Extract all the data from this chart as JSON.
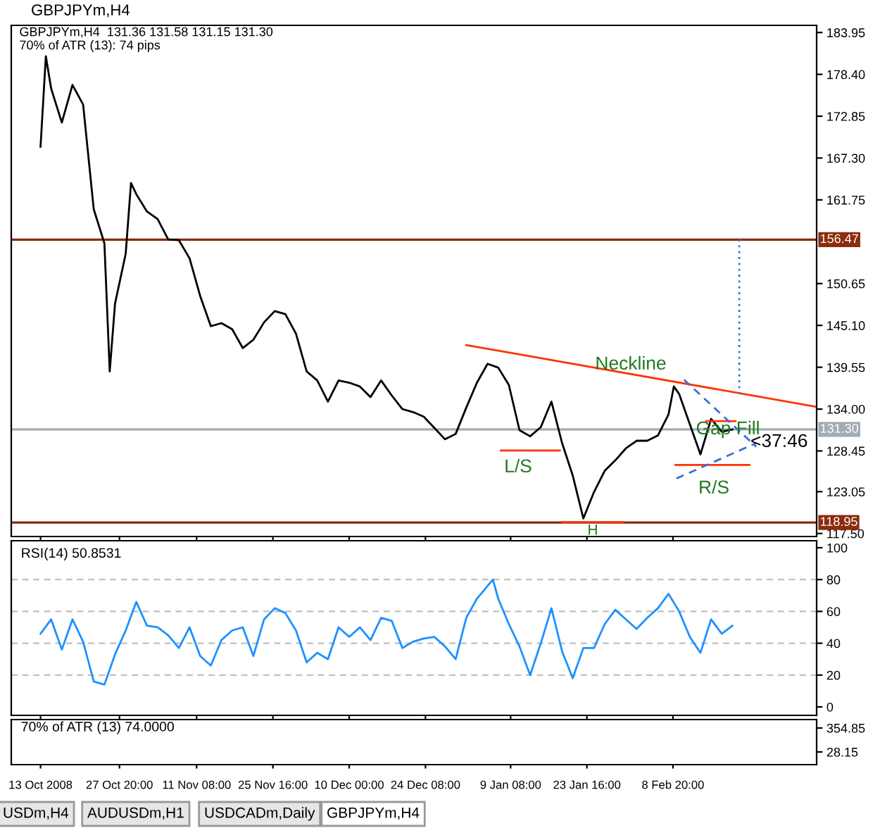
{
  "chart_data": [
    {
      "type": "line",
      "title": "GBPJPYm,H4",
      "annotations": [
        "GBPJPYm,H4  131.36 131.58 131.15 131.30",
        "70% of ATR (13): 74 pips",
        "Neckline",
        "L/S",
        "H",
        "R/S",
        "Gap Fill",
        "<37:46"
      ],
      "xlim": [
        "2008-10-07T12:00",
        "2009-03-07T20:00"
      ],
      "xticks": [
        {
          "value": "2008-10-13T00:00",
          "label": null
        },
        {
          "value": "2008-10-27T20:00",
          "label": null
        },
        {
          "value": "2008-11-11T08:00",
          "label": null
        },
        {
          "value": "2008-11-25T16:00",
          "label": null
        },
        {
          "value": "2008-12-10T00:00",
          "label": null
        },
        {
          "value": "2008-12-24T08:00",
          "label": null
        },
        {
          "value": "2009-01-09T08:00",
          "label": null
        },
        {
          "value": "2009-01-23T16:00",
          "label": null
        },
        {
          "value": "2009-02-08T20:00",
          "label": null
        }
      ],
      "ylim": [
        117.1,
        184.9
      ],
      "yticks": [
        183.95,
        {
          "value": 178.4,
          "label": "178.40"
        },
        172.85,
        {
          "value": 167.3,
          "label": "167.30"
        },
        161.75,
        150.65,
        {
          "value": 145.1,
          "label": "145.10"
        },
        139.55,
        {
          "value": 134.0,
          "label": "134.00"
        },
        128.45,
        123.05,
        {
          "value": 117.5,
          "label": "117.50"
        }
      ],
      "tick_labels": "y",
      "ref_lines": [
        {
          "axis": "y",
          "value": 156.47,
          "label": "156.47",
          "color": "#8b2c0c"
        },
        {
          "axis": "y",
          "value": 131.3,
          "label": "131.30",
          "color": "#a3acb5"
        },
        {
          "axis": "y",
          "value": 118.95,
          "label": "118.95",
          "color": "#8b2c0c"
        }
      ],
      "series": [
        {
          "color": "#000000",
          "x": [
            "2008-10-13",
            "2008-10-14",
            "2008-10-15",
            "2008-10-17",
            "2008-10-19",
            "2008-10-21",
            "2008-10-23",
            "2008-10-25",
            "2008-10-26",
            "2008-10-27",
            "2008-10-29",
            "2008-10-30",
            "2008-10-31",
            "2008-11-02",
            "2008-11-04",
            "2008-11-06",
            "2008-11-08",
            "2008-11-10",
            "2008-11-12",
            "2008-11-14",
            "2008-11-16",
            "2008-11-18",
            "2008-11-20",
            "2008-11-22",
            "2008-11-24",
            "2008-11-26",
            "2008-11-28",
            "2008-11-30",
            "2008-12-02",
            "2008-12-04",
            "2008-12-06",
            "2008-12-08",
            "2008-12-10",
            "2008-12-12",
            "2008-12-14",
            "2008-12-16",
            "2008-12-18",
            "2008-12-20",
            "2008-12-22",
            "2008-12-24",
            "2008-12-26",
            "2008-12-28",
            "2008-12-30",
            "2009-01-01",
            "2009-01-03",
            "2009-01-05",
            "2009-01-07",
            "2009-01-09",
            "2009-01-11",
            "2009-01-13",
            "2009-01-15",
            "2009-01-17",
            "2009-01-19",
            "2009-01-21",
            "2009-01-23",
            "2009-01-25",
            "2009-01-27",
            "2009-01-29",
            "2009-01-31",
            "2009-02-02",
            "2009-02-04",
            "2009-02-06",
            "2009-02-08",
            "2009-02-09",
            "2009-02-10",
            "2009-02-12",
            "2009-02-14",
            "2009-02-16",
            "2009-02-18",
            "2009-02-20"
          ],
          "values": [
            168.8,
            180.8,
            176.5,
            172.0,
            177.0,
            174.4,
            160.5,
            156.0,
            139.0,
            148.0,
            154.6,
            164.0,
            162.5,
            160.2,
            159.2,
            156.5,
            156.4,
            154.0,
            149.0,
            145.0,
            145.4,
            144.6,
            142.1,
            143.2,
            145.5,
            147.0,
            146.6,
            144.0,
            139.0,
            137.8,
            135.0,
            137.8,
            137.5,
            137.0,
            135.6,
            137.8,
            135.8,
            134.0,
            133.6,
            133.0,
            131.5,
            130.0,
            130.7,
            134.2,
            137.5,
            140.0,
            139.5,
            137.2,
            131.2,
            130.4,
            131.6,
            135.0,
            129.5,
            125.2,
            119.5,
            123.0,
            125.8,
            127.2,
            128.8,
            129.8,
            129.8,
            130.5,
            133.3,
            137.0,
            136.0,
            132.0,
            128.0,
            132.7,
            131.0,
            131.3
          ]
        },
        {
          "color": "#ff3300",
          "x": [
            "2009-01-01T00:00",
            "2009-03-07T20:00"
          ],
          "values": [
            142.5,
            134.3
          ]
        },
        {
          "color": "#ff3300",
          "x": [
            "2009-01-07T12:00",
            "2009-01-18T14:00"
          ],
          "values": [
            128.5,
            128.5
          ]
        },
        {
          "color": "#ff3300",
          "x": [
            "2009-01-19T02:00",
            "2009-01-30T12:00"
          ],
          "values": [
            119.0,
            119.0
          ]
        },
        {
          "color": "#ff3300",
          "x": [
            "2009-02-09T07:00",
            "2009-02-23T05:00"
          ],
          "values": [
            126.6,
            126.6
          ]
        },
        {
          "color": "#ff3300",
          "x": [
            "2009-02-15T02:00",
            "2009-02-20T14:00"
          ],
          "values": [
            132.4,
            132.4
          ]
        },
        {
          "color": "#3a6fd8",
          "line_style": "dashed",
          "x": [
            "2009-02-10T22:00",
            "2009-02-24T12:00"
          ],
          "values": [
            137.9,
            129.0
          ]
        },
        {
          "color": "#3a6fd8",
          "line_style": "dashed",
          "x": [
            "2009-02-09T12:00",
            "2009-02-24T12:00"
          ],
          "values": [
            124.8,
            129.5
          ]
        },
        {
          "color": "#3a6fd8",
          "line_style": "dotted",
          "x": [
            "2009-02-21T07:00",
            "2009-02-21T07:00"
          ],
          "values": [
            156.5,
            135.5
          ]
        }
      ]
    },
    {
      "type": "line",
      "title": "RSI(14) 50.8531",
      "xlim": [
        "2008-10-07T12:00",
        "2009-03-07T20:00"
      ],
      "xticks": [
        {
          "value": "2008-10-13T00:00",
          "label": null
        },
        {
          "value": "2008-10-27T20:00",
          "label": null
        },
        {
          "value": "2008-11-11T08:00",
          "label": null
        },
        {
          "value": "2008-11-25T16:00",
          "label": null
        },
        {
          "value": "2008-12-10T00:00",
          "label": null
        },
        {
          "value": "2008-12-24T08:00",
          "label": null
        },
        {
          "value": "2009-01-09T08:00",
          "label": null
        },
        {
          "value": "2009-01-23T16:00",
          "label": null
        },
        {
          "value": "2009-02-08T20:00",
          "label": null
        }
      ],
      "ylim": [
        -5.3,
        104.4
      ],
      "yticks": [
        0,
        20,
        40,
        60,
        80,
        100
      ],
      "tick_labels": "y",
      "ref_lines": [
        {
          "axis": "y",
          "value": 20,
          "color": "#c0c0c0",
          "line_style": "dashed"
        },
        {
          "axis": "y",
          "value": 40,
          "color": "#c0c0c0",
          "line_style": "dashed"
        },
        {
          "axis": "y",
          "value": 60,
          "color": "#c0c0c0",
          "line_style": "dashed"
        },
        {
          "axis": "y",
          "value": 80,
          "color": "#c0c0c0",
          "line_style": "dashed"
        }
      ],
      "series": [
        {
          "color": "#1e90ff",
          "x": [
            "2008-10-13",
            "2008-10-15",
            "2008-10-17",
            "2008-10-19",
            "2008-10-21",
            "2008-10-23",
            "2008-10-25",
            "2008-10-27",
            "2008-10-29",
            "2008-10-31",
            "2008-11-02",
            "2008-11-04",
            "2008-11-06",
            "2008-11-08",
            "2008-11-10",
            "2008-11-12",
            "2008-11-14",
            "2008-11-16",
            "2008-11-18",
            "2008-11-20",
            "2008-11-22",
            "2008-11-24",
            "2008-11-26",
            "2008-11-28",
            "2008-11-30",
            "2008-12-02",
            "2008-12-04",
            "2008-12-06",
            "2008-12-08",
            "2008-12-10",
            "2008-12-12",
            "2008-12-14",
            "2008-12-16",
            "2008-12-18",
            "2008-12-20",
            "2008-12-22",
            "2008-12-24",
            "2008-12-26",
            "2008-12-28",
            "2008-12-30",
            "2009-01-01",
            "2009-01-03",
            "2009-01-06",
            "2009-01-07",
            "2009-01-09",
            "2009-01-11",
            "2009-01-13",
            "2009-01-15",
            "2009-01-17",
            "2009-01-19",
            "2009-01-21",
            "2009-01-23",
            "2009-01-25",
            "2009-01-27",
            "2009-01-29",
            "2009-01-31",
            "2009-02-02",
            "2009-02-04",
            "2009-02-06",
            "2009-02-08",
            "2009-02-10",
            "2009-02-12",
            "2009-02-14",
            "2009-02-16",
            "2009-02-18",
            "2009-02-20"
          ],
          "values": [
            46,
            55,
            36,
            55,
            41,
            16,
            14,
            33,
            48,
            66,
            51,
            50,
            45,
            37,
            50,
            32,
            26,
            42,
            48,
            50,
            32,
            55,
            62,
            59,
            48,
            28,
            34,
            30,
            50,
            44,
            50,
            42,
            56,
            54,
            37,
            41,
            43,
            44,
            38,
            30,
            56,
            68,
            80,
            68,
            52,
            38,
            20,
            40,
            62,
            35,
            18,
            37,
            37,
            52,
            61,
            55,
            49,
            56,
            62,
            71,
            60,
            44,
            34,
            55,
            46,
            51
          ]
        }
      ]
    },
    {
      "type": "line",
      "title": "70% of ATR (13) 74.0000",
      "xlim": [
        "2008-10-07T12:00",
        "2009-03-07T20:00"
      ],
      "xticks": [
        {
          "value": "2008-10-13T00:00",
          "label": "13 Oct 2008"
        },
        {
          "value": "2008-10-27T20:00",
          "label": "27 Oct 20:00"
        },
        {
          "value": "2008-11-11T08:00",
          "label": "11 Nov 08:00"
        },
        {
          "value": "2008-11-25T16:00",
          "label": "25 Nov 16:00"
        },
        {
          "value": "2008-12-10T00:00",
          "label": "10 Dec 00:00"
        },
        {
          "value": "2008-12-24T08:00",
          "label": "24 Dec 08:00"
        },
        {
          "value": "2009-01-09T08:00",
          "label": "9 Jan 08:00"
        },
        {
          "value": "2009-01-23T16:00",
          "label": "23 Jan 16:00"
        },
        {
          "value": "2009-02-08T20:00",
          "label": "8 Feb 20:00"
        }
      ],
      "ylim": [
        -145,
        470
      ],
      "yticks": [
        354.85,
        28.15
      ],
      "annotations": [
        "USDm,H4",
        "AUDUSDm,H1",
        "USDCADm,Daily",
        "GBPJPYm,H4"
      ]
    }
  ]
}
